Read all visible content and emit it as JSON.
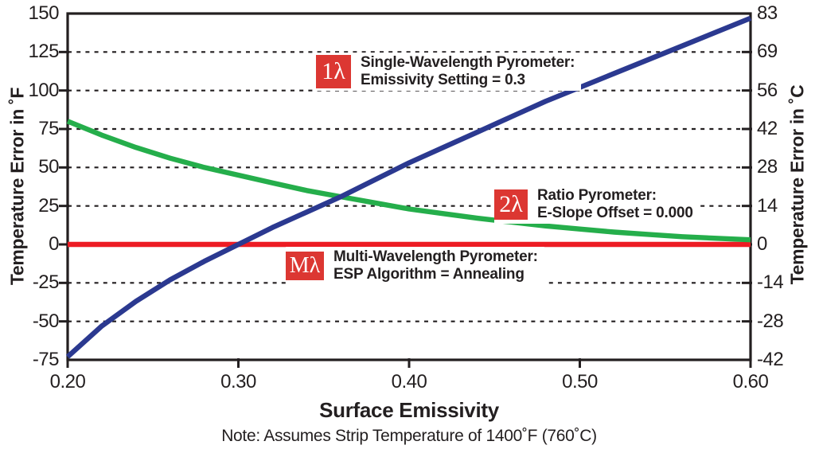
{
  "figure": {
    "y_left": {
      "title": "Temperature Error in ˚F",
      "ticks": [
        "150",
        "125",
        "100",
        "75",
        "50",
        "25",
        "0",
        "-25",
        "-50",
        "-75"
      ]
    },
    "y_right": {
      "title": "Temperature Error in ˚C",
      "ticks": [
        "83",
        "69",
        "56",
        "42",
        "28",
        "14",
        "0",
        "-14",
        "-28",
        "-42"
      ]
    },
    "x": {
      "title": "Surface Emissivity",
      "ticks": [
        "0.20",
        "0.30",
        "0.40",
        "0.50",
        "0.60"
      ]
    },
    "note": "Note: Assumes Strip Temperature of 1400˚F (760˚C)"
  },
  "annotations": [
    {
      "badge": "1λ",
      "line1": "Single-Wavelength Pyrometer:",
      "line2": "Emissivity Setting = 0.3"
    },
    {
      "badge": "2λ",
      "line1": "Ratio Pyrometer:",
      "line2": "E-Slope Offset = 0.000"
    },
    {
      "badge": "Mλ",
      "line1": "Multi-Wavelength Pyrometer:",
      "line2": "ESP Algorithm = Annealing"
    }
  ],
  "colors": {
    "single_wavelength": "#2b3990",
    "ratio": "#25ae4b",
    "multi_wavelength": "#ed1c24",
    "axis": "#231f20",
    "badge_red": "#dc3732"
  },
  "chart_data": {
    "type": "line",
    "xlabel": "Surface Emissivity",
    "ylabel_left": "Temperature Error in ˚F",
    "ylabel_right": "Temperature Error in ˚C",
    "note": "Note: Assumes Strip Temperature of 1400˚F (760˚C)",
    "xlim": [
      0.2,
      0.6
    ],
    "ylim_f": [
      -75,
      150
    ],
    "ylim_c": [
      -42,
      83
    ],
    "x_ticks": [
      0.2,
      0.3,
      0.4,
      0.5,
      0.6
    ],
    "y_ticks_f": [
      150,
      125,
      100,
      75,
      50,
      25,
      0,
      -25,
      -50,
      -75
    ],
    "y_ticks_c": [
      83,
      69,
      56,
      42,
      28,
      14,
      0,
      -14,
      -28,
      -42
    ],
    "gridlines_f": [
      125,
      100,
      75,
      50,
      25,
      -25,
      -50
    ],
    "grid": "horizontal-dashed",
    "legend_position": "inline-annotations",
    "x": [
      0.2,
      0.22,
      0.24,
      0.26,
      0.28,
      0.3,
      0.32,
      0.34,
      0.36,
      0.38,
      0.4,
      0.42,
      0.44,
      0.46,
      0.48,
      0.5,
      0.52,
      0.54,
      0.56,
      0.58,
      0.6
    ],
    "series": [
      {
        "name": "Single-Wavelength Pyrometer (1λ), Emissivity Setting = 0.3",
        "color": "#2b3990",
        "values_f": [
          -73,
          -53,
          -37,
          -23,
          -11,
          0,
          11,
          21,
          31,
          42,
          53,
          63,
          73,
          83,
          93,
          102,
          111,
          120,
          129,
          138,
          147
        ]
      },
      {
        "name": "Ratio Pyrometer (2λ), E-Slope Offset = 0.000",
        "color": "#25ae4b",
        "values_f": [
          80,
          71,
          63,
          56,
          50,
          45,
          40,
          35,
          31,
          27,
          23,
          20,
          17,
          14.5,
          12,
          10,
          8,
          6.5,
          5,
          4,
          3
        ]
      },
      {
        "name": "Multi-Wavelength Pyrometer (Mλ), ESP Algorithm = Annealing",
        "color": "#ed1c24",
        "values_f": [
          0,
          0,
          0,
          0,
          0,
          0,
          0,
          0,
          0,
          0,
          0,
          0,
          0,
          0,
          0,
          0,
          0,
          0,
          0,
          0,
          0
        ]
      }
    ]
  }
}
